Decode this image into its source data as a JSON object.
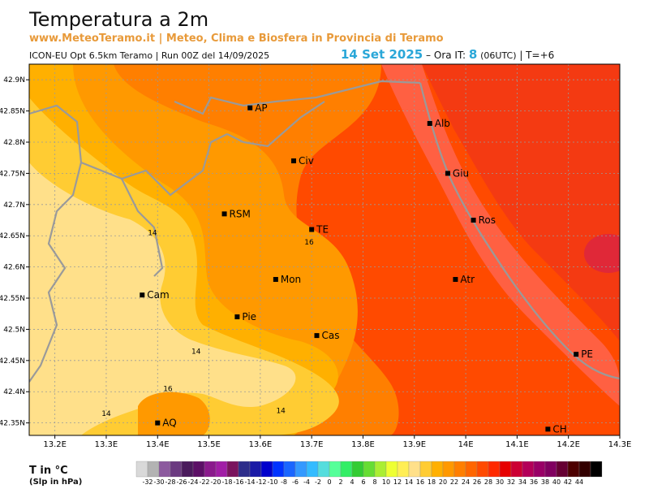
{
  "header": {
    "title": "Temperatura a 2m",
    "subtitle": "www.MeteoTeramo.it | Meteo, Clima e Biosfera in Provincia di Teramo",
    "run_info": "ICON-EU Opt 6.5km Teramo | Run 00Z del 14/09/2025",
    "date": "14 Set 2025",
    "dash": "–",
    "hour_label": "Ora IT:",
    "hour": "8",
    "utc": "(06UTC)",
    "offset": "| T=+6"
  },
  "map": {
    "lat_labels": [
      "42.9N",
      "42.85N",
      "42.8N",
      "42.75N",
      "42.7N",
      "42.65N",
      "42.6N",
      "42.55N",
      "42.5N",
      "42.45N",
      "42.4N",
      "42.35N"
    ],
    "lon_labels": [
      "13.2E",
      "13.3E",
      "13.4E",
      "13.5E",
      "13.6E",
      "13.7E",
      "13.8E",
      "13.9E",
      "14E",
      "14.1E",
      "14.2E",
      "14.3E"
    ],
    "cities": [
      {
        "code": "AP",
        "lon": 13.58,
        "lat": 42.855
      },
      {
        "code": "Alb",
        "lon": 13.93,
        "lat": 42.83
      },
      {
        "code": "Civ",
        "lon": 13.665,
        "lat": 42.77
      },
      {
        "code": "Giu",
        "lon": 13.965,
        "lat": 42.75
      },
      {
        "code": "RSM",
        "lon": 13.53,
        "lat": 42.685
      },
      {
        "code": "TE",
        "lon": 13.7,
        "lat": 42.66
      },
      {
        "code": "Ros",
        "lon": 14.015,
        "lat": 42.675
      },
      {
        "code": "Mon",
        "lon": 13.63,
        "lat": 42.58
      },
      {
        "code": "Atr",
        "lon": 13.98,
        "lat": 42.58
      },
      {
        "code": "Cam",
        "lon": 13.37,
        "lat": 42.555
      },
      {
        "code": "Pie",
        "lon": 13.555,
        "lat": 42.52
      },
      {
        "code": "Cas",
        "lon": 13.71,
        "lat": 42.49
      },
      {
        "code": "PE",
        "lon": 14.215,
        "lat": 42.46
      },
      {
        "code": "AQ",
        "lon": 13.4,
        "lat": 42.35
      },
      {
        "code": "CH",
        "lon": 14.16,
        "lat": 42.34
      }
    ],
    "contour_labels": [
      {
        "text": "14",
        "lon": 13.39,
        "lat": 42.655
      },
      {
        "text": "16",
        "lon": 13.695,
        "lat": 42.64
      },
      {
        "text": "14",
        "lon": 13.475,
        "lat": 42.465
      },
      {
        "text": "16",
        "lon": 13.42,
        "lat": 42.405
      },
      {
        "text": "14",
        "lon": 13.3,
        "lat": 42.365
      },
      {
        "text": "14",
        "lon": 13.64,
        "lat": 42.37
      }
    ]
  },
  "legend": {
    "title": "T in °C",
    "subtitle": "(Slp in hPa)",
    "ticks": [
      "-32",
      "-30",
      "-28",
      "-26",
      "-24",
      "-22",
      "-20",
      "-18",
      "-16",
      "-14",
      "-12",
      "-10",
      "-8",
      "-6",
      "-4",
      "-2",
      "0",
      "2",
      "4",
      "6",
      "8",
      "10",
      "12",
      "14",
      "16",
      "18",
      "20",
      "22",
      "24",
      "26",
      "28",
      "30",
      "32",
      "34",
      "36",
      "38",
      "40",
      "42",
      "44"
    ],
    "colors": [
      "#d9d9d9",
      "#b3b3b3",
      "#8c5a9e",
      "#6b3a80",
      "#4a1a5c",
      "#5c0f66",
      "#8a1a8c",
      "#a11ea6",
      "#7a145e",
      "#2e2e8a",
      "#1a1aa6",
      "#0000cc",
      "#0033ff",
      "#1a66ff",
      "#3399ff",
      "#33bbff",
      "#55dddd",
      "#55ff99",
      "#33ee66",
      "#33cc33",
      "#66dd33",
      "#aaee33",
      "#eeff33",
      "#ffee55",
      "#ffe08a",
      "#ffcc33",
      "#ffb000",
      "#ff9900",
      "#ff7f00",
      "#ff6600",
      "#ff4a00",
      "#ff2a00",
      "#e60000",
      "#cc0033",
      "#b30059",
      "#990066",
      "#800060",
      "#660033",
      "#4d0000",
      "#330000",
      "#000000"
    ]
  }
}
